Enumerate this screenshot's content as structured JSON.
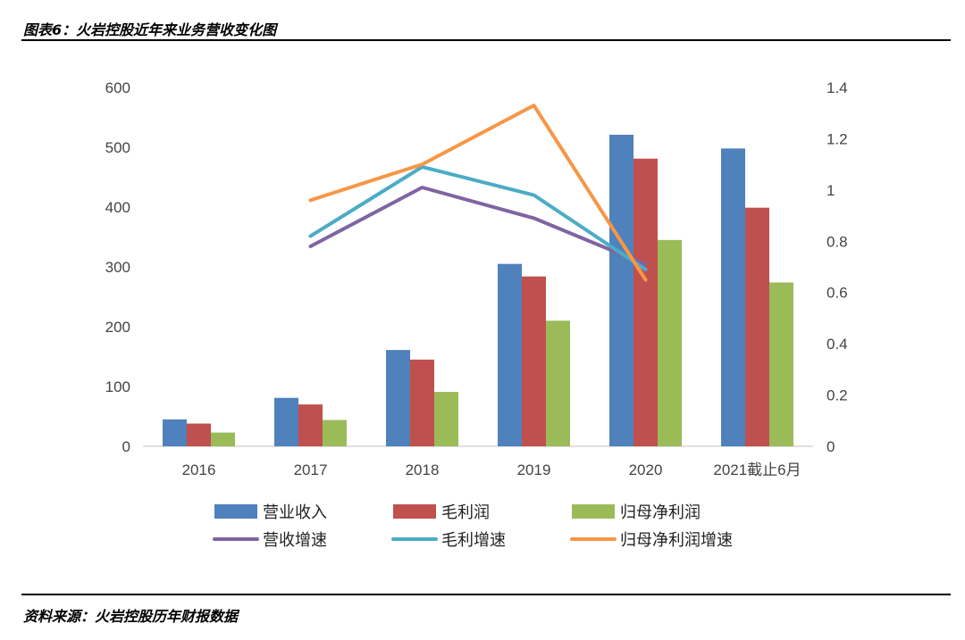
{
  "header": {
    "title": "图表6：火岩控股近年来业务营收变化图"
  },
  "footer": {
    "source": "资料来源：火岩控股历年财报数据"
  },
  "chart_data": {
    "type": "bar",
    "title": "",
    "categories": [
      "2016",
      "2017",
      "2018",
      "2019",
      "2020",
      "2021截止6月"
    ],
    "ylim": [
      0,
      600
    ],
    "y_ticks": [
      0,
      100,
      200,
      300,
      400,
      500,
      600
    ],
    "y2lim": [
      0,
      1.4
    ],
    "y2_ticks": [
      "0",
      "0.2",
      "0.4",
      "0.6",
      "0.8",
      "1",
      "1.2",
      "1.4"
    ],
    "grid": false,
    "legend_position": "bottom",
    "bar_series": [
      {
        "name": "营业收入",
        "color": "#4F81BD",
        "values": [
          45,
          81,
          161,
          305,
          521,
          498
        ]
      },
      {
        "name": "毛利润",
        "color": "#C0504D",
        "values": [
          38,
          70,
          145,
          284,
          481,
          399
        ]
      },
      {
        "name": "归母净利润",
        "color": "#9BBB59",
        "values": [
          23,
          44,
          91,
          210,
          345,
          274
        ]
      }
    ],
    "line_series": [
      {
        "name": "营收增速",
        "color": "#8064A2",
        "values": [
          null,
          0.78,
          1.01,
          0.89,
          0.71,
          null
        ]
      },
      {
        "name": "毛利增速",
        "color": "#4BACC6",
        "values": [
          null,
          0.82,
          1.09,
          0.98,
          0.69,
          null
        ]
      },
      {
        "name": "归母净利润增速",
        "color": "#F79646",
        "values": [
          null,
          0.96,
          1.1,
          1.33,
          0.65,
          null
        ]
      }
    ]
  }
}
